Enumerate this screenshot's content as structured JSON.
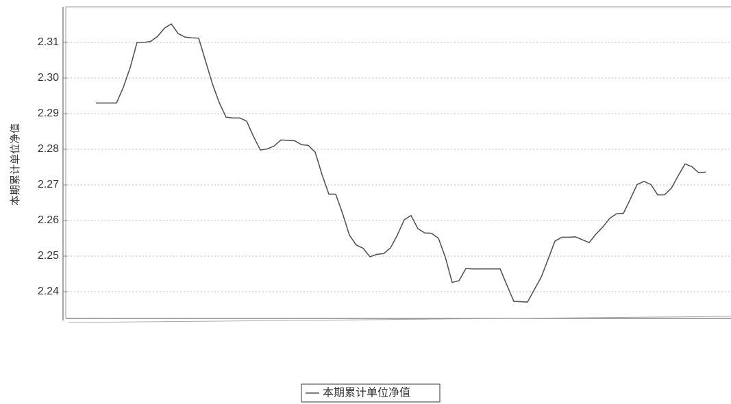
{
  "chart_data": {
    "type": "line",
    "ylabel": "本期累计单位净值",
    "ylim": [
      2.2325,
      2.32
    ],
    "yticks": [
      2.24,
      2.25,
      2.26,
      2.27,
      2.28,
      2.29,
      {
        "value": 2.3,
        "label": "2.30"
      },
      2.31
    ],
    "grid": true,
    "legend": "bottom",
    "series": [
      {
        "name": "本期累计单位净值",
        "color": "#555555",
        "values": [
          2.293,
          2.293,
          2.293,
          2.293,
          2.2974,
          2.3029,
          2.31,
          2.31,
          2.3103,
          2.3117,
          2.314,
          2.3152,
          2.3125,
          2.3115,
          2.3113,
          2.3112,
          2.3048,
          2.2984,
          2.2931,
          2.289,
          2.2888,
          2.2888,
          2.2879,
          2.2836,
          2.2798,
          2.2801,
          2.2809,
          2.2826,
          2.2825,
          2.2824,
          2.2813,
          2.2811,
          2.2792,
          2.2729,
          2.2674,
          2.2674,
          2.262,
          2.2559,
          2.2531,
          2.2522,
          2.2498,
          2.2505,
          2.2507,
          2.2523,
          2.2559,
          2.2602,
          2.2614,
          2.2577,
          2.2565,
          2.2564,
          2.255,
          2.2497,
          2.2426,
          2.2431,
          2.2465,
          2.2464,
          2.2464,
          2.2464,
          2.2464,
          2.2464,
          2.2418,
          2.2373,
          2.2372,
          2.2371,
          2.2406,
          2.2441,
          2.2491,
          2.2542,
          2.2553,
          2.2553,
          2.2554,
          2.2546,
          2.2538,
          2.2562,
          2.2582,
          2.2606,
          2.2619,
          2.262,
          2.266,
          2.2701,
          2.271,
          2.2701,
          2.2672,
          2.2672,
          2.2691,
          2.2726,
          2.2759,
          2.2751,
          2.2734,
          2.2736
        ]
      }
    ]
  }
}
